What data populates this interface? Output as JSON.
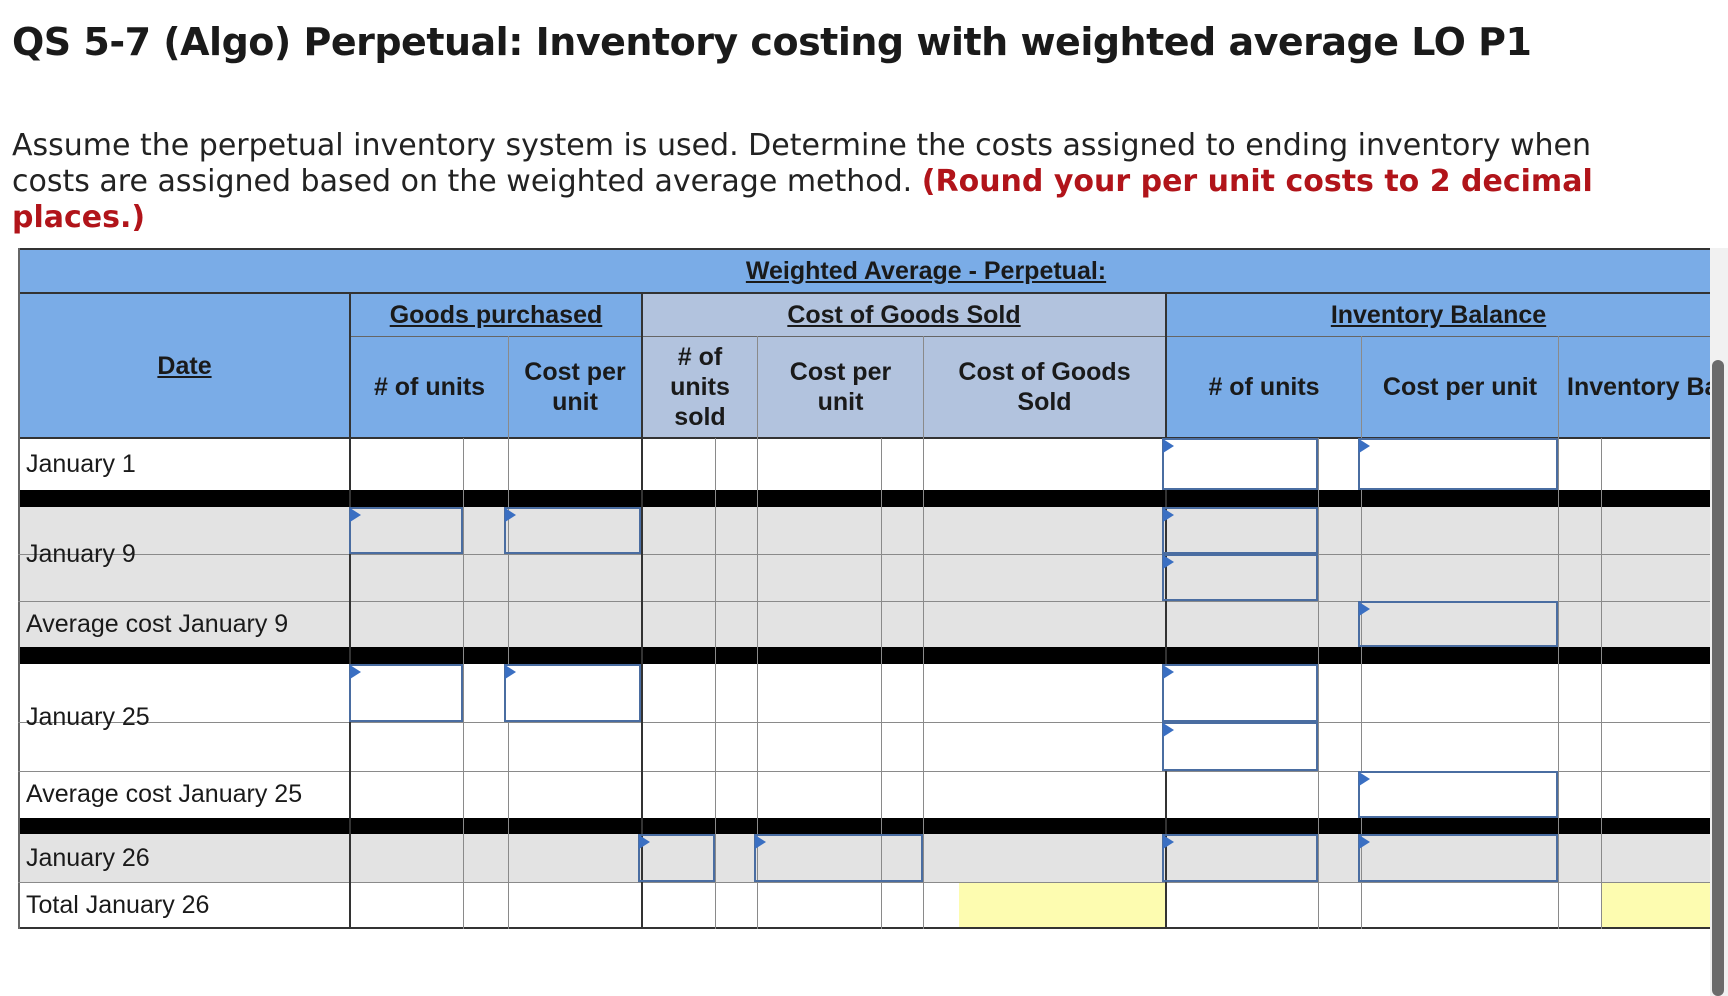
{
  "title": "QS 5-7 (Algo) Perpetual: Inventory costing with weighted average LO P1",
  "instructions": {
    "text": "Assume the perpetual inventory system is used. Determine the costs assigned to ending inventory when costs are assigned based on the weighted average method.",
    "emphasis": "(Round your per unit costs to 2 decimal places.)"
  },
  "table": {
    "main_header": "Weighted Average - Perpetual:",
    "groups": {
      "goods_purchased": "Goods purchased",
      "cogs": "Cost of Goods Sold",
      "inventory_balance": "Inventory Balance"
    },
    "columns": {
      "date": "Date",
      "gp_units": "# of units",
      "gp_cost": "Cost per unit",
      "cogs_units": "# of units sold",
      "cogs_cost": "Cost per unit",
      "cogs_total": "Cost of Goods Sold",
      "ib_units": "# of units",
      "ib_cost": "Cost per unit",
      "ib_balance": "Inventory Ba"
    },
    "rows": [
      "January 1",
      "January 9",
      "Average cost January 9",
      "January 25",
      "Average cost January 25",
      "January 26",
      "Total January 26"
    ]
  },
  "colors": {
    "header_blue": "#7aace7",
    "subheader_blue": "#b2c3de",
    "row_grey": "#e3e3e3",
    "input_border": "#4a6da1",
    "total_highlight": "#fdfcb0",
    "emphasis_red": "#b1141a"
  }
}
